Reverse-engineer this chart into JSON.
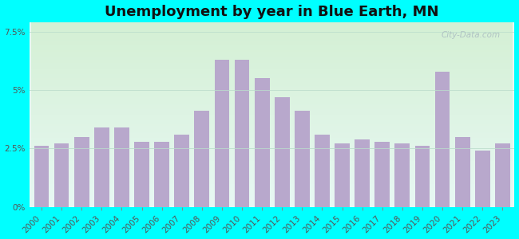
{
  "title": "Unemployment by year in Blue Earth, MN",
  "years": [
    2000,
    2001,
    2002,
    2003,
    2004,
    2005,
    2006,
    2007,
    2008,
    2009,
    2010,
    2011,
    2012,
    2013,
    2014,
    2015,
    2016,
    2017,
    2018,
    2019,
    2020,
    2021,
    2022,
    2023
  ],
  "values": [
    2.6,
    2.7,
    3.0,
    3.4,
    3.4,
    2.8,
    2.8,
    3.1,
    4.1,
    6.3,
    6.3,
    5.5,
    4.7,
    4.1,
    3.1,
    2.7,
    2.9,
    2.8,
    2.7,
    2.6,
    5.8,
    3.0,
    2.4,
    2.7
  ],
  "bar_color": "#b8a8cc",
  "ylim": [
    0,
    7.9
  ],
  "yticks": [
    0,
    2.5,
    5.0,
    7.5
  ],
  "ytick_labels": [
    "0%",
    "2.5%",
    "5%",
    "7.5%"
  ],
  "background_outer": "#00ffff",
  "background_inner_top": "#d4f0d4",
  "background_inner_bottom": "#e8f8f4",
  "grid_color": "#bbddcc",
  "title_fontsize": 13,
  "tick_fontsize": 7.5,
  "watermark_text": "City-Data.com",
  "bar_width": 0.75
}
